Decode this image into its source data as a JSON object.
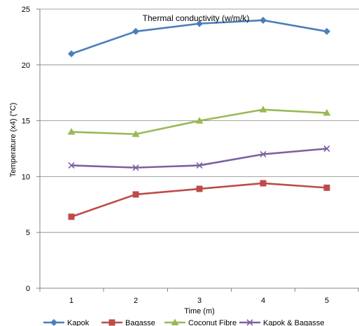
{
  "chart_data": {
    "type": "line",
    "title": "Thermal conductivity (w/m/k)",
    "xlabel": "Time (m)",
    "ylabel": "Temperature (x4) (°C)",
    "categories": [
      "1",
      "2",
      "3",
      "4",
      "5"
    ],
    "ylim": [
      0,
      25
    ],
    "yticks": [
      "0",
      "5",
      "10",
      "15",
      "20",
      "25"
    ],
    "grid": "horizontal",
    "legend_position": "bottom",
    "series": [
      {
        "name": "Kapok",
        "values": [
          21,
          23,
          23.7,
          24,
          23
        ],
        "color": "#4a7ebb",
        "marker": "diamond"
      },
      {
        "name": "Bagasse",
        "values": [
          6.4,
          8.4,
          8.9,
          9.4,
          9.0
        ],
        "color": "#be4b48",
        "marker": "square"
      },
      {
        "name": "Coconut Fibre",
        "values": [
          14,
          13.8,
          15,
          16,
          15.7
        ],
        "color": "#98b954",
        "marker": "triangle"
      },
      {
        "name": "Kapok & Bagasse",
        "values": [
          11,
          10.8,
          11,
          12,
          12.5
        ],
        "color": "#7d60a0",
        "marker": "x"
      }
    ]
  }
}
